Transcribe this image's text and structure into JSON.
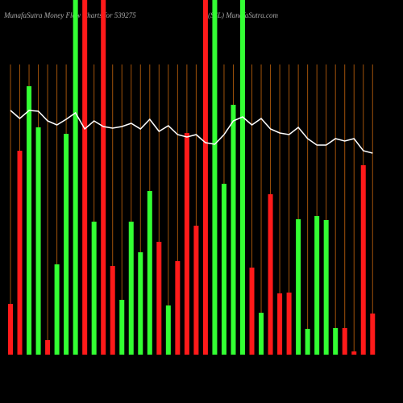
{
  "chart_data": {
    "type": "bar",
    "title": "MunafaSutra  Money Flow  Charts for 539275",
    "subtitle": "(SSL) MunafaSutra.com",
    "ylim": [
      0,
      440
    ],
    "values": [
      63,
      253,
      333,
      282,
      18,
      112,
      274,
      440,
      440,
      165,
      440,
      110,
      68,
      165,
      127,
      203,
      140,
      61,
      116,
      275,
      160,
      440,
      440,
      212,
      310,
      440,
      108,
      52,
      199,
      76,
      77,
      168,
      32,
      172,
      167,
      33,
      33,
      4,
      235,
      51
    ],
    "colors": [
      "#ff1a1a",
      "#ff1a1a",
      "#33ff33",
      "#33ff33",
      "#ff1a1a",
      "#33ff33",
      "#33ff33",
      "#33ff33",
      "#ff1a1a",
      "#33ff33",
      "#ff1a1a",
      "#ff1a1a",
      "#33ff33",
      "#33ff33",
      "#33ff33",
      "#33ff33",
      "#ff1a1a",
      "#33ff33",
      "#ff1a1a",
      "#ff1a1a",
      "#ff1a1a",
      "#ff1a1a",
      "#33ff33",
      "#33ff33",
      "#33ff33",
      "#33ff33",
      "#ff1a1a",
      "#33ff33",
      "#ff1a1a",
      "#ff1a1a",
      "#ff1a1a",
      "#33ff33",
      "#33ff33",
      "#33ff33",
      "#33ff33",
      "#33ff33",
      "#ff1a1a",
      "#ff1a1a",
      "#ff1a1a",
      "#ff1a1a"
    ],
    "line": {
      "color": "#ffffff",
      "values": [
        303,
        293,
        303,
        302,
        290,
        285,
        292,
        300,
        280,
        290,
        283,
        281,
        283,
        287,
        280,
        292,
        277,
        284,
        273,
        270,
        273,
        263,
        261,
        273,
        290,
        295,
        285,
        293,
        280,
        275,
        273,
        282,
        268,
        260,
        260,
        268,
        265,
        268,
        253,
        250
      ]
    }
  }
}
